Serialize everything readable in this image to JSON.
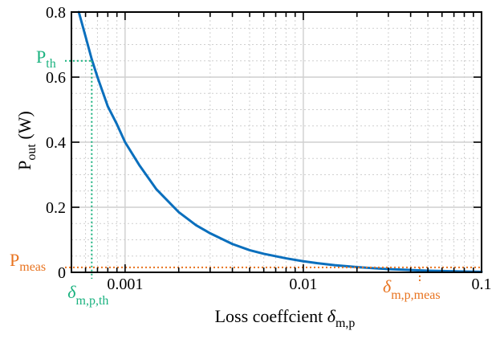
{
  "chart_data": {
    "type": "line",
    "xscale": "log",
    "xlim": [
      0.0005,
      0.1
    ],
    "ylim": [
      0,
      0.8
    ],
    "grid": true,
    "xlabel": {
      "main": "Loss coeffcient ",
      "symbol": "δ",
      "sub": "m,p"
    },
    "ylabel": {
      "main": "P",
      "sub": "out",
      "unit": " (W)"
    },
    "x_ticks": [
      {
        "value": 0.001,
        "label": "0.001"
      },
      {
        "value": 0.01,
        "label": "0.01"
      },
      {
        "value": 0.1,
        "label": "0.1"
      }
    ],
    "y_ticks": [
      {
        "value": 0,
        "label": "0"
      },
      {
        "value": 0.2,
        "label": "0.2"
      },
      {
        "value": 0.4,
        "label": "0.4"
      },
      {
        "value": 0.6,
        "label": "0.6"
      },
      {
        "value": 0.8,
        "label": "0.8"
      }
    ],
    "series": [
      {
        "color": "#0a6fbd",
        "x": [
          0.00055,
          0.0006,
          0.00065,
          0.0007,
          0.0008,
          0.0009,
          0.001,
          0.0012,
          0.0015,
          0.002,
          0.0025,
          0.003,
          0.004,
          0.005,
          0.006,
          0.008,
          0.01,
          0.012,
          0.015,
          0.02,
          0.025,
          0.03,
          0.04,
          0.05,
          0.06,
          0.08,
          0.1
        ],
        "y": [
          0.8,
          0.725,
          0.655,
          0.6,
          0.51,
          0.455,
          0.4,
          0.33,
          0.255,
          0.185,
          0.145,
          0.12,
          0.087,
          0.068,
          0.057,
          0.043,
          0.034,
          0.028,
          0.022,
          0.016,
          0.0125,
          0.01,
          0.007,
          0.005,
          0.004,
          0.0025,
          0.0015
        ]
      }
    ],
    "annotations": {
      "threshold": {
        "color": "#1ab27f",
        "x": 0.00065,
        "y": 0.65,
        "p_label": {
          "main": "P",
          "sub": "th"
        },
        "delta_label": {
          "main": "δ",
          "sub": "m,p,th"
        }
      },
      "measured": {
        "color": "#e8731f",
        "x": 0.045,
        "y": 0.015,
        "p_label": {
          "main": "P",
          "sub": "meas"
        },
        "delta_label": {
          "main": "δ",
          "sub": "m,p,meas"
        }
      }
    }
  }
}
